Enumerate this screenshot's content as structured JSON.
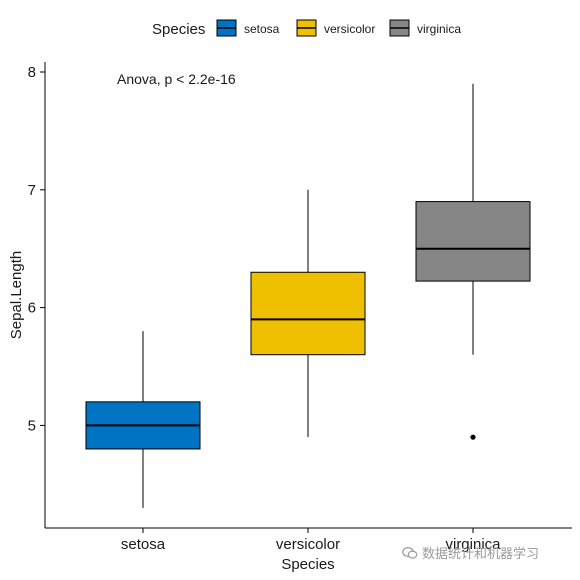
{
  "chart_data": {
    "type": "box",
    "xlabel": "Species",
    "ylabel": "Sepal.Length",
    "ylim": [
      4.1,
      8.1
    ],
    "yticks": [
      5,
      6,
      7,
      8
    ],
    "categories": [
      "setosa",
      "versicolor",
      "virginica"
    ],
    "legend": {
      "title": "Species",
      "position": "top"
    },
    "annotation": "Anova, p < 2.2e-16",
    "series": [
      {
        "name": "setosa",
        "color": "#0073C2",
        "min": 4.3,
        "q1": 4.8,
        "median": 5.0,
        "q3": 5.2,
        "max": 5.8,
        "outliers": []
      },
      {
        "name": "versicolor",
        "color": "#EFC000",
        "min": 4.9,
        "q1": 5.6,
        "median": 5.9,
        "q3": 6.3,
        "max": 7.0,
        "outliers": []
      },
      {
        "name": "virginica",
        "color": "#868686",
        "min": 5.6,
        "q1": 6.225,
        "median": 6.5,
        "q3": 6.9,
        "max": 7.9,
        "outliers": [
          4.9
        ]
      }
    ]
  },
  "watermark": {
    "icon": "wechat-icon",
    "text": "数据统计和机器学习"
  }
}
